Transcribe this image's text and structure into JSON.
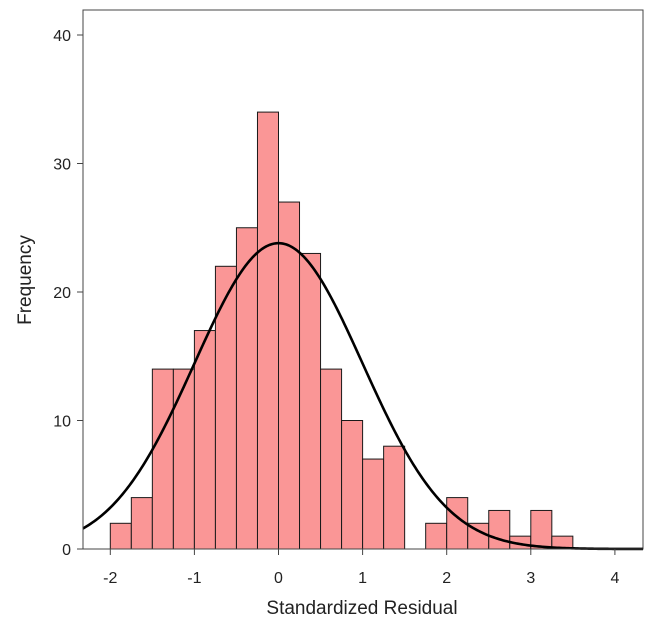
{
  "chart_data": {
    "type": "bar",
    "xlabel": "Standardized Residual",
    "ylabel": "Frequency",
    "xlim": [
      -2.35,
      4.35
    ],
    "ylim": [
      0,
      42
    ],
    "x_ticks": [
      -2,
      -1,
      0,
      1,
      2,
      3,
      4
    ],
    "y_ticks": [
      0,
      10,
      20,
      30,
      40
    ],
    "bin_width": 0.25,
    "bins": [
      {
        "start": -2.0,
        "value": 2
      },
      {
        "start": -1.75,
        "value": 4
      },
      {
        "start": -1.5,
        "value": 14
      },
      {
        "start": -1.25,
        "value": 14
      },
      {
        "start": -1.0,
        "value": 17
      },
      {
        "start": -0.75,
        "value": 22
      },
      {
        "start": -0.5,
        "value": 25
      },
      {
        "start": -0.25,
        "value": 34
      },
      {
        "start": 0.0,
        "value": 27
      },
      {
        "start": 0.25,
        "value": 23
      },
      {
        "start": 0.5,
        "value": 14
      },
      {
        "start": 0.75,
        "value": 10
      },
      {
        "start": 1.0,
        "value": 7
      },
      {
        "start": 1.25,
        "value": 8
      },
      {
        "start": 1.5,
        "value": 0
      },
      {
        "start": 1.75,
        "value": 2
      },
      {
        "start": 2.0,
        "value": 4
      },
      {
        "start": 2.25,
        "value": 2
      },
      {
        "start": 2.5,
        "value": 3
      },
      {
        "start": 2.75,
        "value": 1
      },
      {
        "start": 3.0,
        "value": 3
      },
      {
        "start": 3.25,
        "value": 1
      }
    ],
    "normal_curve": {
      "mean": 0.0,
      "std": 1.0,
      "peak": 23.8
    },
    "bar_color": "#FA9696",
    "bar_edge_color": "#1A1A1A",
    "curve_color": "#000000"
  }
}
